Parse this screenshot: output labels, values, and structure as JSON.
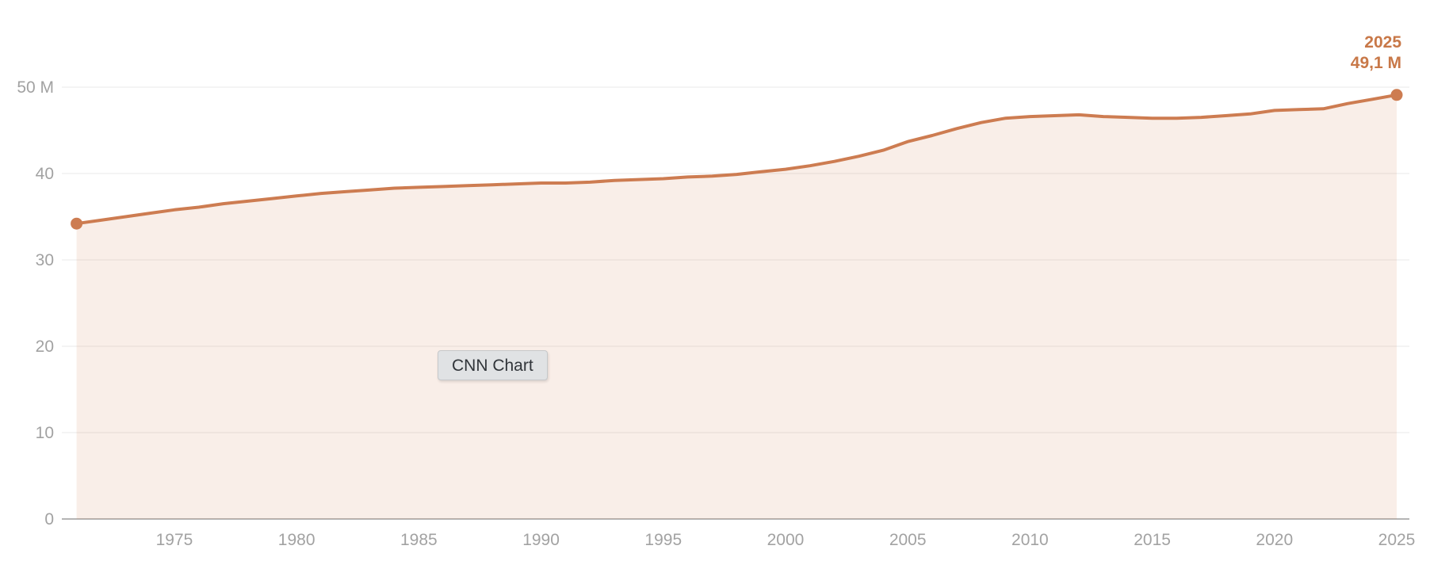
{
  "tooltip": {
    "label": "CNN Chart"
  },
  "annotation": {
    "year": "2025",
    "value": "49,1 M"
  },
  "colors": {
    "line": "#cd7c51",
    "fill": "rgba(205,124,81,0.13)",
    "annotation_text": "#c87848",
    "gridline": "#e8e8e8",
    "baseline": "#b5b5b5",
    "tick_text": "#a2a2a2"
  },
  "axes": {
    "y_ticks": [
      {
        "value": 50,
        "label": "50 M"
      },
      {
        "value": 40,
        "label": "40"
      },
      {
        "value": 30,
        "label": "30"
      },
      {
        "value": 20,
        "label": "20"
      },
      {
        "value": 10,
        "label": "10"
      },
      {
        "value": 0,
        "label": "0"
      }
    ],
    "x_ticks": [
      {
        "value": 1975,
        "label": "1975"
      },
      {
        "value": 1980,
        "label": "1980"
      },
      {
        "value": 1985,
        "label": "1985"
      },
      {
        "value": 1990,
        "label": "1990"
      },
      {
        "value": 1995,
        "label": "1995"
      },
      {
        "value": 2000,
        "label": "2000"
      },
      {
        "value": 2005,
        "label": "2005"
      },
      {
        "value": 2010,
        "label": "2010"
      },
      {
        "value": 2015,
        "label": "2015"
      },
      {
        "value": 2020,
        "label": "2020"
      },
      {
        "value": 2025,
        "label": "2025"
      }
    ]
  },
  "chart_data": {
    "type": "area",
    "title": "CNN Chart",
    "xlabel": "",
    "ylabel": "",
    "unit": "M",
    "xlim": [
      1971,
      2025
    ],
    "ylim": [
      0,
      50
    ],
    "grid": true,
    "legend": false,
    "end_point_label": {
      "year": "2025",
      "value": "49,1 M"
    },
    "x": [
      1971,
      1972,
      1973,
      1974,
      1975,
      1976,
      1977,
      1978,
      1979,
      1980,
      1981,
      1982,
      1983,
      1984,
      1985,
      1986,
      1987,
      1988,
      1989,
      1990,
      1991,
      1992,
      1993,
      1994,
      1995,
      1996,
      1997,
      1998,
      1999,
      2000,
      2001,
      2002,
      2003,
      2004,
      2005,
      2006,
      2007,
      2008,
      2009,
      2010,
      2011,
      2012,
      2013,
      2014,
      2015,
      2016,
      2017,
      2018,
      2019,
      2020,
      2021,
      2022,
      2023,
      2024,
      2025
    ],
    "series": [
      {
        "name": "CNN Chart",
        "values": [
          34.2,
          34.6,
          35.0,
          35.4,
          35.8,
          36.1,
          36.5,
          36.8,
          37.1,
          37.4,
          37.7,
          37.9,
          38.1,
          38.3,
          38.4,
          38.5,
          38.6,
          38.7,
          38.8,
          38.9,
          38.9,
          39.0,
          39.2,
          39.3,
          39.4,
          39.6,
          39.7,
          39.9,
          40.2,
          40.5,
          40.9,
          41.4,
          42.0,
          42.7,
          43.7,
          44.4,
          45.2,
          45.9,
          46.4,
          46.6,
          46.7,
          46.8,
          46.6,
          46.5,
          46.4,
          46.4,
          46.5,
          46.7,
          46.9,
          47.3,
          47.4,
          47.5,
          48.1,
          48.6,
          49.1
        ]
      }
    ]
  }
}
